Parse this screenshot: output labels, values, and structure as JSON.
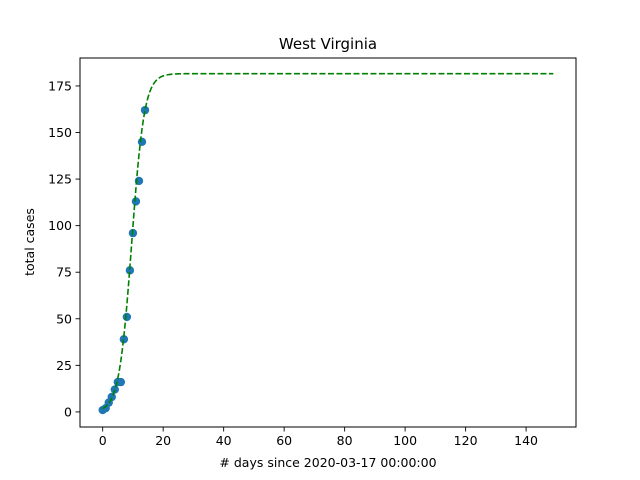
{
  "chart_data": {
    "type": "scatter",
    "title": "West Virginia",
    "xlabel": "# days since 2020-03-17 00:00:00",
    "ylabel": "total cases",
    "xlim": [
      -7.5,
      156.5
    ],
    "ylim": [
      -8.1,
      190.0
    ],
    "xticks": [
      0,
      20,
      40,
      60,
      80,
      100,
      120,
      140
    ],
    "yticks": [
      0,
      25,
      50,
      75,
      100,
      125,
      150,
      175
    ],
    "grid": false,
    "legend": "none",
    "series": [
      {
        "kind": "points",
        "color": "#1f77b4",
        "x": [
          0,
          1,
          2,
          3,
          4,
          5,
          6,
          7,
          8,
          9,
          10,
          11,
          12,
          13,
          14
        ],
        "y": [
          1,
          2,
          5,
          8,
          12,
          16,
          16,
          39,
          51,
          76,
          96,
          113,
          124,
          145,
          162
        ]
      },
      {
        "kind": "fit",
        "style": "dashed",
        "color": "#008000",
        "function": "logistic",
        "L": 181.6,
        "k": 0.48,
        "x0": 9.6,
        "x_range": [
          0,
          149
        ]
      }
    ]
  }
}
